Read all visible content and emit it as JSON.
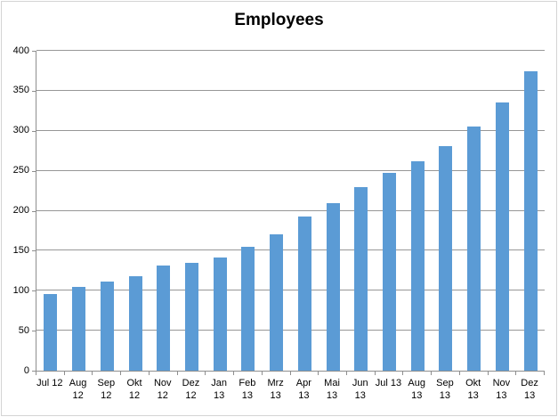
{
  "title": "Employees",
  "colors": {
    "bar": "#5b9bd5",
    "gridline": "#979797",
    "axis": "#8e8e8e",
    "border": "#d4d4d4",
    "text": "#000000",
    "background": "#ffffff"
  },
  "chart_data": {
    "type": "bar",
    "title": "Employees",
    "xlabel": "",
    "ylabel": "",
    "categories": [
      "Jul 12",
      "Aug 12",
      "Sep 12",
      "Okt 12",
      "Nov 12",
      "Dez 12",
      "Jan 13",
      "Feb 13",
      "Mrz 13",
      "Apr 13",
      "Mai 13",
      "Jun 13",
      "Jul 13",
      "Aug 13",
      "Sep 13",
      "Okt 13",
      "Nov 13",
      "Dez 13"
    ],
    "category_label_lines": [
      [
        "Jul 12",
        ""
      ],
      [
        "Aug",
        "12"
      ],
      [
        "Sep",
        "12"
      ],
      [
        "Okt",
        "12"
      ],
      [
        "Nov",
        "12"
      ],
      [
        "Dez",
        "12"
      ],
      [
        "Jan",
        "13"
      ],
      [
        "Feb",
        "13"
      ],
      [
        "Mrz",
        "13"
      ],
      [
        "Apr",
        "13"
      ],
      [
        "Mai",
        "13"
      ],
      [
        "Jun",
        "13"
      ],
      [
        "Jul 13",
        ""
      ],
      [
        "Aug",
        "13"
      ],
      [
        "Sep",
        "13"
      ],
      [
        "Okt",
        "13"
      ],
      [
        "Nov",
        "13"
      ],
      [
        "Dez",
        "13"
      ]
    ],
    "values": [
      96,
      105,
      111,
      118,
      131,
      135,
      142,
      155,
      170,
      193,
      210,
      230,
      247,
      262,
      281,
      305,
      335,
      374
    ],
    "ylim": [
      0,
      400
    ],
    "yticks": [
      0,
      50,
      100,
      150,
      200,
      250,
      300,
      350,
      400
    ],
    "grid": "horizontal-major",
    "legend": "none"
  }
}
